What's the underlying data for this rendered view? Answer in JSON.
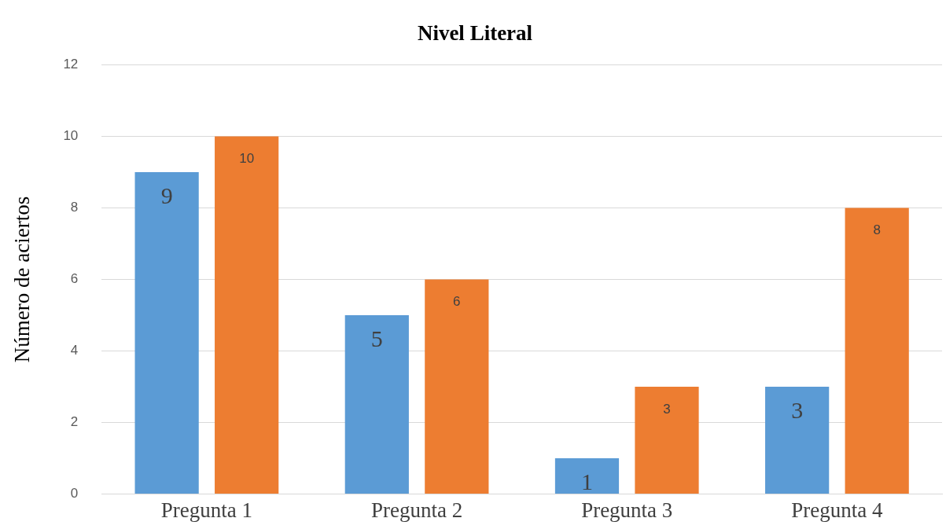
{
  "chart_data": {
    "type": "bar",
    "title": "Nivel Literal",
    "ylabel": "Número de aciertos",
    "categories": [
      "Pregunta 1",
      "Pregunta 2",
      "Pregunta 3",
      "Pregunta 4"
    ],
    "series": [
      {
        "color": "#5b9bd5",
        "values": [
          9,
          5,
          1,
          3
        ]
      },
      {
        "color": "#ed7d31",
        "values": [
          10,
          6,
          3,
          8
        ]
      }
    ],
    "ylim": [
      0,
      12
    ],
    "yticks": [
      0,
      2,
      4,
      6,
      8,
      10,
      12
    ],
    "grid": "y",
    "legend": false,
    "data_labels": true
  }
}
